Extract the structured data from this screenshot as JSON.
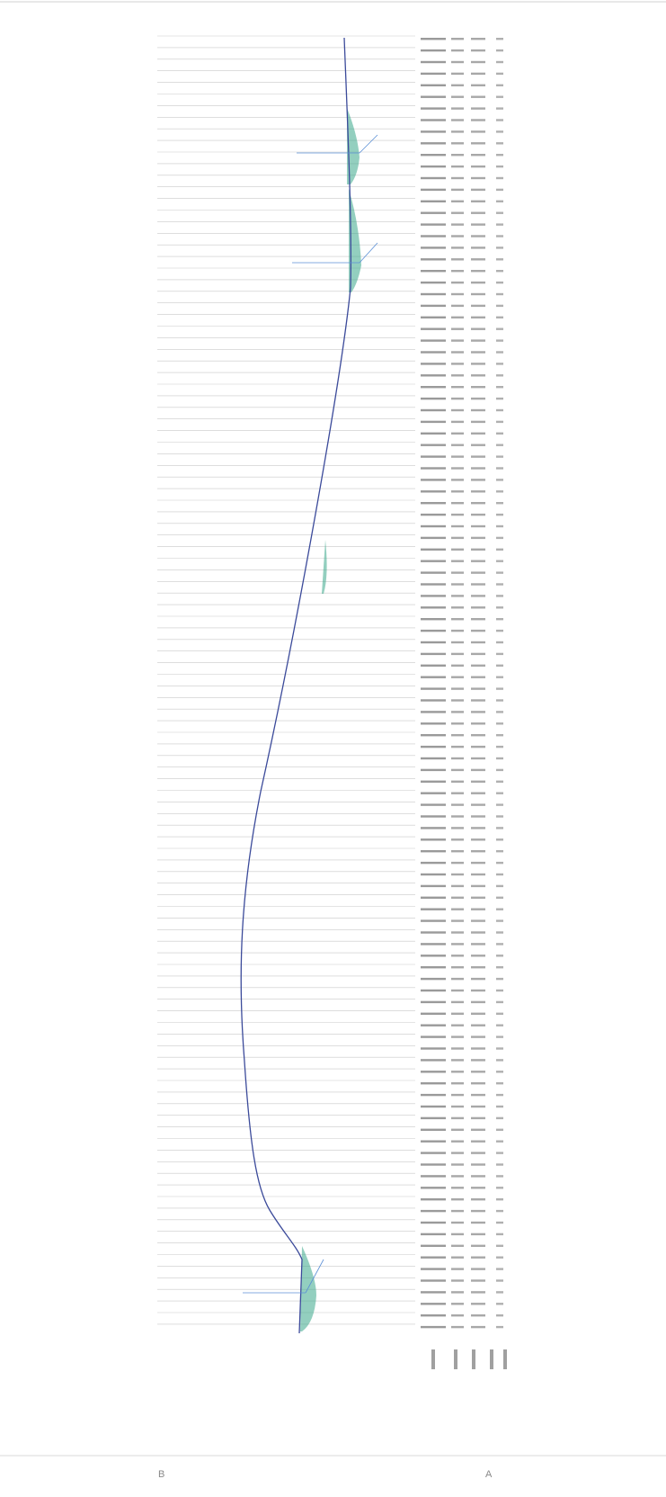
{
  "footer": {
    "left_mark": "B",
    "right_mark": "A"
  }
}
